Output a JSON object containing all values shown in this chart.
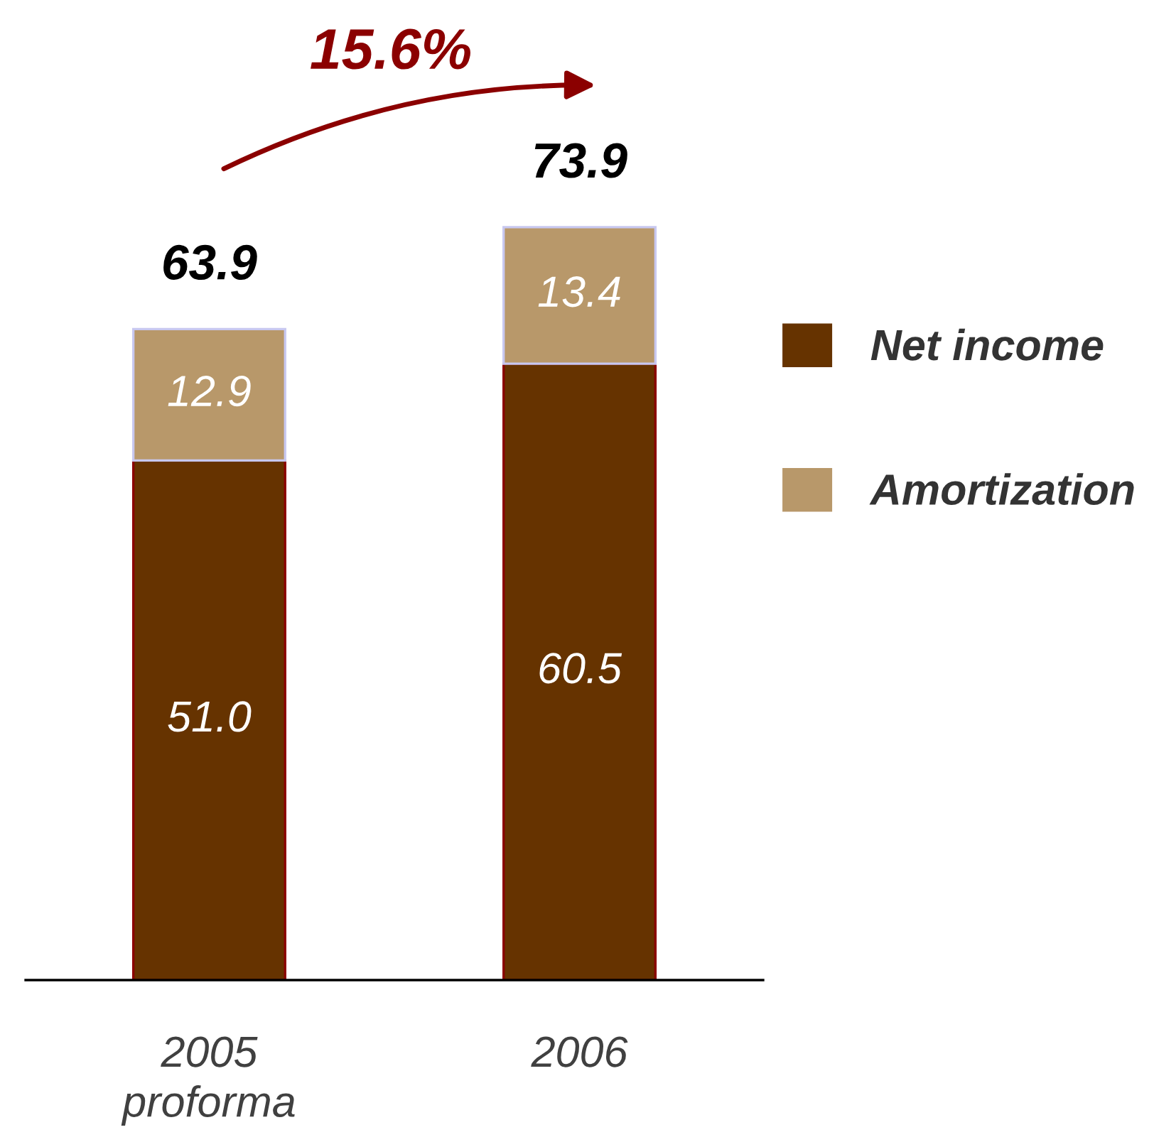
{
  "chart_data": {
    "type": "bar",
    "stacked": true,
    "categories": [
      "2005\nproforma",
      "2006"
    ],
    "series": [
      {
        "name": "Net income",
        "color": "#663300",
        "values": [
          51.0,
          60.5
        ],
        "value_labels": [
          "51.0",
          "60.5"
        ]
      },
      {
        "name": "Amortization",
        "color": "#b8986a",
        "values": [
          12.9,
          13.4
        ],
        "value_labels": [
          "12.9",
          "13.4"
        ]
      }
    ],
    "totals": [
      "63.9",
      "73.9"
    ],
    "annotations": [
      "15.6%"
    ],
    "legend": "right",
    "grid": false
  }
}
